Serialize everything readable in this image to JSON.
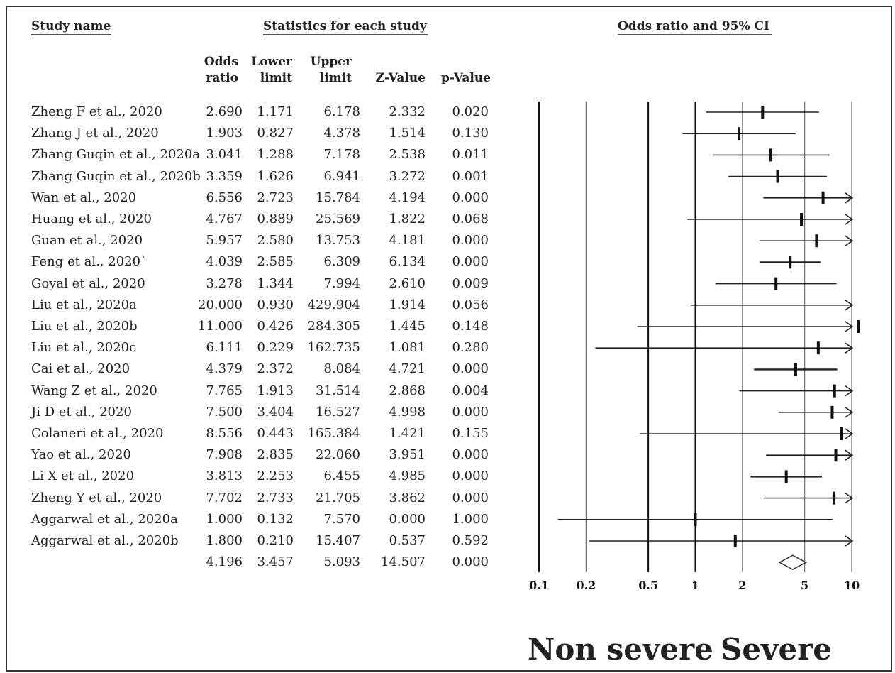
{
  "headers": {
    "study_name": "Study name",
    "statistics": "Statistics for each study",
    "plot": "Odds ratio and 95% CI"
  },
  "columns": {
    "odds": [
      "Odds",
      "ratio"
    ],
    "lower": [
      "Lower",
      "limit"
    ],
    "upper": [
      "Upper",
      "limit"
    ],
    "z": "Z-Value",
    "p": "p-Value"
  },
  "chart_data": {
    "type": "forest",
    "x_scale": "log",
    "xlim": [
      0.1,
      10
    ],
    "x_ticks": [
      "0.1",
      "0.2",
      "0.5",
      "1",
      "2",
      "5",
      "10"
    ],
    "x_tick_values": [
      0.1,
      0.2,
      0.5,
      1,
      2,
      5,
      10
    ],
    "studies": [
      {
        "name": "Zheng F et al., 2020",
        "or": "2.690",
        "lower": "1.171",
        "upper": "6.178",
        "z": "2.332",
        "p": "0.020"
      },
      {
        "name": "Zhang J et al., 2020",
        "or": "1.903",
        "lower": "0.827",
        "upper": "4.378",
        "z": "1.514",
        "p": "0.130"
      },
      {
        "name": "Zhang Guqin et al., 2020a",
        "or": "3.041",
        "lower": "1.288",
        "upper": "7.178",
        "z": "2.538",
        "p": "0.011"
      },
      {
        "name": "Zhang Guqin et al., 2020b",
        "or": "3.359",
        "lower": "1.626",
        "upper": "6.941",
        "z": "3.272",
        "p": "0.001"
      },
      {
        "name": "Wan et al., 2020",
        "or": "6.556",
        "lower": "2.723",
        "upper": "15.784",
        "z": "4.194",
        "p": "0.000"
      },
      {
        "name": "Huang et al., 2020",
        "or": "4.767",
        "lower": "0.889",
        "upper": "25.569",
        "z": "1.822",
        "p": "0.068"
      },
      {
        "name": "Guan et al., 2020",
        "or": "5.957",
        "lower": "2.580",
        "upper": "13.753",
        "z": "4.181",
        "p": "0.000"
      },
      {
        "name": "Feng et al., 2020`",
        "or": "4.039",
        "lower": "2.585",
        "upper": "6.309",
        "z": "6.134",
        "p": "0.000"
      },
      {
        "name": "Goyal et al., 2020",
        "or": "3.278",
        "lower": "1.344",
        "upper": "7.994",
        "z": "2.610",
        "p": "0.009"
      },
      {
        "name": "Liu et al., 2020a",
        "or": "20.000",
        "lower": "0.930",
        "upper": "429.904",
        "z": "1.914",
        "p": "0.056"
      },
      {
        "name": "Liu et al., 2020b",
        "or": "11.000",
        "lower": "0.426",
        "upper": "284.305",
        "z": "1.445",
        "p": "0.148"
      },
      {
        "name": "Liu et al., 2020c",
        "or": "6.111",
        "lower": "0.229",
        "upper": "162.735",
        "z": "1.081",
        "p": "0.280"
      },
      {
        "name": "Cai et al., 2020",
        "or": "4.379",
        "lower": "2.372",
        "upper": "8.084",
        "z": "4.721",
        "p": "0.000"
      },
      {
        "name": "Wang Z et al., 2020",
        "or": "7.765",
        "lower": "1.913",
        "upper": "31.514",
        "z": "2.868",
        "p": "0.004"
      },
      {
        "name": "Ji D et al., 2020",
        "or": "7.500",
        "lower": "3.404",
        "upper": "16.527",
        "z": "4.998",
        "p": "0.000"
      },
      {
        "name": "Colaneri et al., 2020",
        "or": "8.556",
        "lower": "0.443",
        "upper": "165.384",
        "z": "1.421",
        "p": "0.155"
      },
      {
        "name": "Yao et al., 2020",
        "or": "7.908",
        "lower": "2.835",
        "upper": "22.060",
        "z": "3.951",
        "p": "0.000"
      },
      {
        "name": "Li X et al., 2020",
        "or": "3.813",
        "lower": "2.253",
        "upper": "6.455",
        "z": "4.985",
        "p": "0.000"
      },
      {
        "name": "Zheng Y et al., 2020",
        "or": "7.702",
        "lower": "2.733",
        "upper": "21.705",
        "z": "3.862",
        "p": "0.000"
      },
      {
        "name": "Aggarwal et al., 2020a",
        "or": "1.000",
        "lower": "0.132",
        "upper": "7.570",
        "z": "0.000",
        "p": "1.000"
      },
      {
        "name": "Aggarwal et al., 2020b",
        "or": "1.800",
        "lower": "0.210",
        "upper": "15.407",
        "z": "0.537",
        "p": "0.592"
      }
    ],
    "summary": {
      "name": "",
      "or": "4.196",
      "lower": "3.457",
      "upper": "5.093",
      "z": "14.507",
      "p": "0.000"
    },
    "favours_left": "Non severe",
    "favours_right": "Severe"
  }
}
